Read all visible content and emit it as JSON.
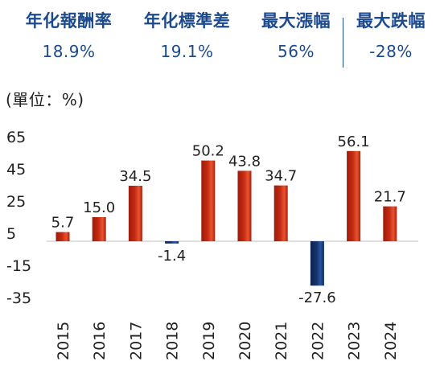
{
  "stats": [
    {
      "label": "年化報酬率",
      "value": "18.9%"
    },
    {
      "label": "年化標準差",
      "value": "19.1%"
    },
    {
      "label": "最大漲幅",
      "value": "56%"
    },
    {
      "label": "最大跌幅",
      "value": "-28%"
    }
  ],
  "unit_label": "(單位：%)",
  "colors": {
    "positive": "#c42a12",
    "negative": "#15336b",
    "stat_text": "#1c4a8f"
  },
  "chart_data": {
    "type": "bar",
    "categories": [
      "2015",
      "2016",
      "2017",
      "2018",
      "2019",
      "2020",
      "2021",
      "2022",
      "2023",
      "2024"
    ],
    "values": [
      5.7,
      15.0,
      34.5,
      -1.4,
      50.2,
      43.8,
      34.7,
      -27.6,
      56.1,
      21.7
    ],
    "labels": [
      "5.7",
      "15.0",
      "34.5",
      "-1.4",
      "50.2",
      "43.8",
      "34.7",
      "-27.6",
      "56.1",
      "21.7"
    ],
    "y_ticks": [
      65,
      45,
      25,
      5,
      -15,
      -35
    ],
    "ylim": [
      -35,
      65
    ],
    "grid": false
  }
}
